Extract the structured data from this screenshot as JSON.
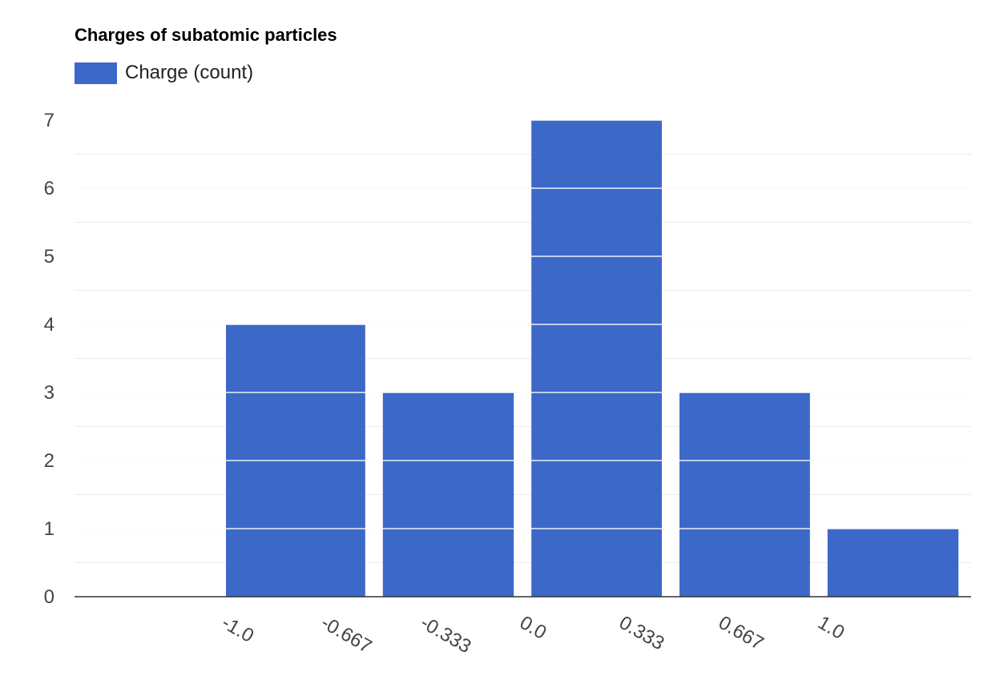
{
  "chart_data": {
    "type": "bar",
    "title": "Charges of subatomic particles",
    "series": [
      {
        "name": "Charge (count)",
        "color": "#3c68c8",
        "bars": [
          {
            "x_start": -1.0,
            "x_end": -0.667,
            "count": 4
          },
          {
            "x_start": -0.667,
            "x_end": -0.333,
            "count": 3
          },
          {
            "x_start": -0.333,
            "x_end": 0.0,
            "count": 7
          },
          {
            "x_start": 0.0,
            "x_end": 0.333,
            "count": 3
          },
          {
            "x_start": 0.333,
            "x_end": 0.667,
            "count": 1
          }
        ]
      }
    ],
    "x_tick_labels": [
      "-1.0",
      "-0.667",
      "-0.333",
      "0.0",
      "0.333",
      "0.667",
      "1.0"
    ],
    "y_tick_labels": [
      "0",
      "1",
      "2",
      "3",
      "4",
      "5",
      "6",
      "7"
    ],
    "ylim": [
      0,
      7
    ],
    "grid": true,
    "legend_position": "top-left"
  }
}
